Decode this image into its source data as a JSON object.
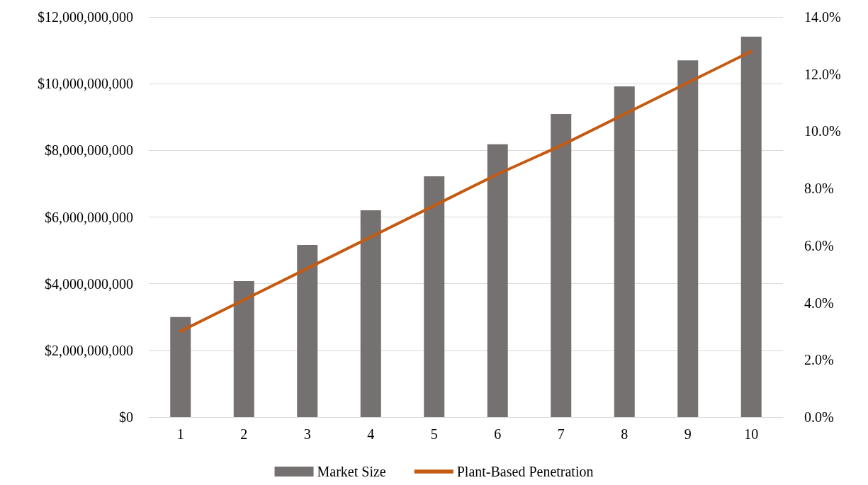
{
  "chart_data": {
    "type": "bar",
    "categories": [
      "1",
      "2",
      "3",
      "4",
      "5",
      "6",
      "7",
      "8",
      "9",
      "10"
    ],
    "series": [
      {
        "name": "Market Size",
        "color": "#767171",
        "values": [
          3000000000,
          4080000000,
          5160000000,
          6200000000,
          7220000000,
          8180000000,
          9090000000,
          9920000000,
          10700000000,
          11410000000
        ]
      },
      {
        "name": "Plant-Based Penetration",
        "type": "line",
        "axis": "y2",
        "color": "#c55a11",
        "values": [
          3.0,
          4.1,
          5.2,
          6.3,
          7.4,
          8.5,
          9.5,
          10.6,
          11.7,
          12.8
        ]
      }
    ],
    "ylim": [
      0,
      12000000000
    ],
    "yticks": [
      {
        "value": 0,
        "label": "$0"
      },
      {
        "value": 2000000000,
        "label": "$2,000,000,000"
      },
      {
        "value": 4000000000,
        "label": "$4,000,000,000"
      },
      {
        "value": 6000000000,
        "label": "$6,000,000,000"
      },
      {
        "value": 8000000000,
        "label": "$8,000,000,000"
      },
      {
        "value": 10000000000,
        "label": "$10,000,000,000"
      },
      {
        "value": 12000000000,
        "label": "$12,000,000,000"
      }
    ],
    "y2lim": [
      0,
      14
    ],
    "y2ticks": [
      {
        "value": 0,
        "label": "0.0%"
      },
      {
        "value": 2,
        "label": "2.0%"
      },
      {
        "value": 4,
        "label": "4.0%"
      },
      {
        "value": 6,
        "label": "6.0%"
      },
      {
        "value": 8,
        "label": "8.0%"
      },
      {
        "value": 10,
        "label": "10.0%"
      },
      {
        "value": 12,
        "label": "12.0%"
      },
      {
        "value": 14,
        "label": "14.0%"
      }
    ],
    "grid": "y",
    "legend": "bottom",
    "marker": "none",
    "line_style": "solid"
  }
}
